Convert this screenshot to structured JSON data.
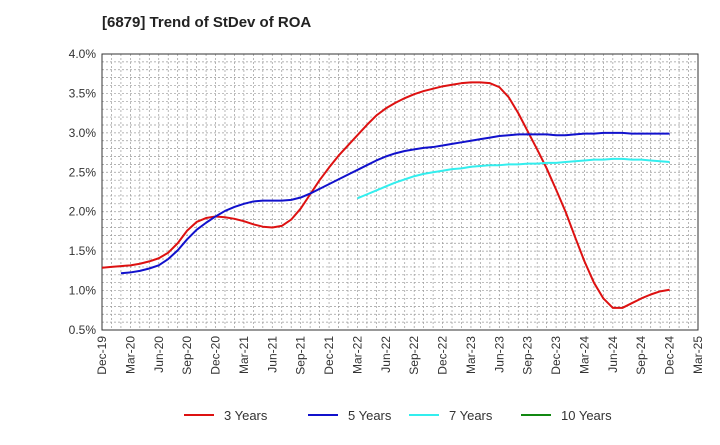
{
  "colors": {
    "three_years": "#dd1111",
    "five_years": "#1111cc",
    "seven_years": "#33eeee",
    "ten_years": "#118811",
    "grid": "#999999",
    "axis": "#333333"
  },
  "chart_data": {
    "type": "line",
    "title": "[6879]  Trend of StDev of ROA",
    "xlabel": "",
    "ylabel": "",
    "x_ticks": [
      "Dec-19",
      "Mar-20",
      "Jun-20",
      "Sep-20",
      "Dec-20",
      "Mar-21",
      "Jun-21",
      "Sep-21",
      "Dec-21",
      "Mar-22",
      "Jun-22",
      "Sep-22",
      "Dec-22",
      "Mar-23",
      "Jun-23",
      "Sep-23",
      "Dec-23",
      "Mar-24",
      "Jun-24",
      "Sep-24",
      "Dec-24",
      "Mar-25"
    ],
    "y_ticks": [
      "0.5%",
      "1.0%",
      "1.5%",
      "2.0%",
      "2.5%",
      "3.0%",
      "3.5%",
      "4.0%"
    ],
    "ylim": [
      0.5,
      4.0
    ],
    "grid": true,
    "legend_position": "bottom",
    "series": [
      {
        "name": "3 Years",
        "color": "#dd1111",
        "points": [
          [
            "Dec-19",
            1.29
          ],
          [
            "Jan-20",
            1.3
          ],
          [
            "Feb-20",
            1.31
          ],
          [
            "Mar-20",
            1.32
          ],
          [
            "Apr-20",
            1.34
          ],
          [
            "May-20",
            1.37
          ],
          [
            "Jun-20",
            1.41
          ],
          [
            "Jul-20",
            1.48
          ],
          [
            "Aug-20",
            1.6
          ],
          [
            "Sep-20",
            1.76
          ],
          [
            "Oct-20",
            1.87
          ],
          [
            "Nov-20",
            1.92
          ],
          [
            "Dec-20",
            1.94
          ],
          [
            "Jan-21",
            1.93
          ],
          [
            "Feb-21",
            1.91
          ],
          [
            "Mar-21",
            1.88
          ],
          [
            "Apr-21",
            1.84
          ],
          [
            "May-21",
            1.81
          ],
          [
            "Jun-21",
            1.8
          ],
          [
            "Jul-21",
            1.82
          ],
          [
            "Aug-21",
            1.9
          ],
          [
            "Sep-21",
            2.04
          ],
          [
            "Oct-21",
            2.22
          ],
          [
            "Nov-21",
            2.4
          ],
          [
            "Dec-21",
            2.56
          ],
          [
            "Jan-22",
            2.71
          ],
          [
            "Feb-22",
            2.84
          ],
          [
            "Mar-22",
            2.97
          ],
          [
            "Apr-22",
            3.1
          ],
          [
            "May-22",
            3.22
          ],
          [
            "Jun-22",
            3.31
          ],
          [
            "Jul-22",
            3.38
          ],
          [
            "Aug-22",
            3.44
          ],
          [
            "Sep-22",
            3.49
          ],
          [
            "Oct-22",
            3.53
          ],
          [
            "Nov-22",
            3.56
          ],
          [
            "Dec-22",
            3.59
          ],
          [
            "Jan-23",
            3.61
          ],
          [
            "Feb-23",
            3.63
          ],
          [
            "Mar-23",
            3.64
          ],
          [
            "Apr-23",
            3.64
          ],
          [
            "May-23",
            3.63
          ],
          [
            "Jun-23",
            3.58
          ],
          [
            "Jul-23",
            3.45
          ],
          [
            "Aug-23",
            3.25
          ],
          [
            "Sep-23",
            3.02
          ],
          [
            "Oct-23",
            2.79
          ],
          [
            "Nov-23",
            2.55
          ],
          [
            "Dec-23",
            2.28
          ],
          [
            "Jan-24",
            2.0
          ],
          [
            "Feb-24",
            1.68
          ],
          [
            "Mar-24",
            1.37
          ],
          [
            "Apr-24",
            1.1
          ],
          [
            "May-24",
            0.9
          ],
          [
            "Jun-24",
            0.78
          ],
          [
            "Jul-24",
            0.78
          ],
          [
            "Aug-24",
            0.84
          ],
          [
            "Sep-24",
            0.9
          ],
          [
            "Oct-24",
            0.95
          ],
          [
            "Nov-24",
            0.99
          ],
          [
            "Dec-24",
            1.01
          ]
        ]
      },
      {
        "name": "5 Years",
        "color": "#1111cc",
        "points": [
          [
            "Feb-20",
            1.22
          ],
          [
            "Mar-20",
            1.23
          ],
          [
            "Apr-20",
            1.25
          ],
          [
            "May-20",
            1.28
          ],
          [
            "Jun-20",
            1.32
          ],
          [
            "Jul-20",
            1.4
          ],
          [
            "Aug-20",
            1.51
          ],
          [
            "Sep-20",
            1.65
          ],
          [
            "Oct-20",
            1.77
          ],
          [
            "Nov-20",
            1.86
          ],
          [
            "Dec-20",
            1.94
          ],
          [
            "Jan-21",
            2.01
          ],
          [
            "Feb-21",
            2.06
          ],
          [
            "Mar-21",
            2.1
          ],
          [
            "Apr-21",
            2.13
          ],
          [
            "May-21",
            2.14
          ],
          [
            "Jun-21",
            2.14
          ],
          [
            "Jul-21",
            2.14
          ],
          [
            "Aug-21",
            2.15
          ],
          [
            "Sep-21",
            2.18
          ],
          [
            "Oct-21",
            2.23
          ],
          [
            "Nov-21",
            2.29
          ],
          [
            "Dec-21",
            2.35
          ],
          [
            "Jan-22",
            2.41
          ],
          [
            "Feb-22",
            2.47
          ],
          [
            "Mar-22",
            2.53
          ],
          [
            "Apr-22",
            2.59
          ],
          [
            "May-22",
            2.65
          ],
          [
            "Jun-22",
            2.7
          ],
          [
            "Jul-22",
            2.74
          ],
          [
            "Aug-22",
            2.77
          ],
          [
            "Sep-22",
            2.79
          ],
          [
            "Oct-22",
            2.81
          ],
          [
            "Nov-22",
            2.82
          ],
          [
            "Dec-22",
            2.84
          ],
          [
            "Jan-23",
            2.86
          ],
          [
            "Feb-23",
            2.88
          ],
          [
            "Mar-23",
            2.9
          ],
          [
            "Apr-23",
            2.92
          ],
          [
            "May-23",
            2.94
          ],
          [
            "Jun-23",
            2.96
          ],
          [
            "Jul-23",
            2.97
          ],
          [
            "Aug-23",
            2.98
          ],
          [
            "Sep-23",
            2.98
          ],
          [
            "Oct-23",
            2.98
          ],
          [
            "Nov-23",
            2.98
          ],
          [
            "Dec-23",
            2.97
          ],
          [
            "Jan-24",
            2.97
          ],
          [
            "Feb-24",
            2.98
          ],
          [
            "Mar-24",
            2.99
          ],
          [
            "Apr-24",
            2.99
          ],
          [
            "May-24",
            3.0
          ],
          [
            "Jun-24",
            3.0
          ],
          [
            "Jul-24",
            3.0
          ],
          [
            "Aug-24",
            2.99
          ],
          [
            "Sep-24",
            2.99
          ],
          [
            "Oct-24",
            2.99
          ],
          [
            "Nov-24",
            2.99
          ],
          [
            "Dec-24",
            2.99
          ]
        ]
      },
      {
        "name": "7 Years",
        "color": "#33eeee",
        "points": [
          [
            "Mar-22",
            2.17
          ],
          [
            "Apr-22",
            2.22
          ],
          [
            "May-22",
            2.27
          ],
          [
            "Jun-22",
            2.32
          ],
          [
            "Jul-22",
            2.37
          ],
          [
            "Aug-22",
            2.41
          ],
          [
            "Sep-22",
            2.45
          ],
          [
            "Oct-22",
            2.48
          ],
          [
            "Nov-22",
            2.5
          ],
          [
            "Dec-22",
            2.52
          ],
          [
            "Jan-23",
            2.54
          ],
          [
            "Feb-23",
            2.55
          ],
          [
            "Mar-23",
            2.57
          ],
          [
            "Apr-23",
            2.58
          ],
          [
            "May-23",
            2.59
          ],
          [
            "Jun-23",
            2.59
          ],
          [
            "Jul-23",
            2.6
          ],
          [
            "Aug-23",
            2.6
          ],
          [
            "Sep-23",
            2.61
          ],
          [
            "Oct-23",
            2.61
          ],
          [
            "Nov-23",
            2.62
          ],
          [
            "Dec-23",
            2.62
          ],
          [
            "Jan-24",
            2.63
          ],
          [
            "Feb-24",
            2.64
          ],
          [
            "Mar-24",
            2.65
          ],
          [
            "Apr-24",
            2.66
          ],
          [
            "May-24",
            2.66
          ],
          [
            "Jun-24",
            2.67
          ],
          [
            "Jul-24",
            2.67
          ],
          [
            "Aug-24",
            2.66
          ],
          [
            "Sep-24",
            2.66
          ],
          [
            "Oct-24",
            2.65
          ],
          [
            "Nov-24",
            2.64
          ],
          [
            "Dec-24",
            2.63
          ]
        ]
      },
      {
        "name": "10 Years",
        "color": "#118811",
        "points": []
      }
    ]
  }
}
